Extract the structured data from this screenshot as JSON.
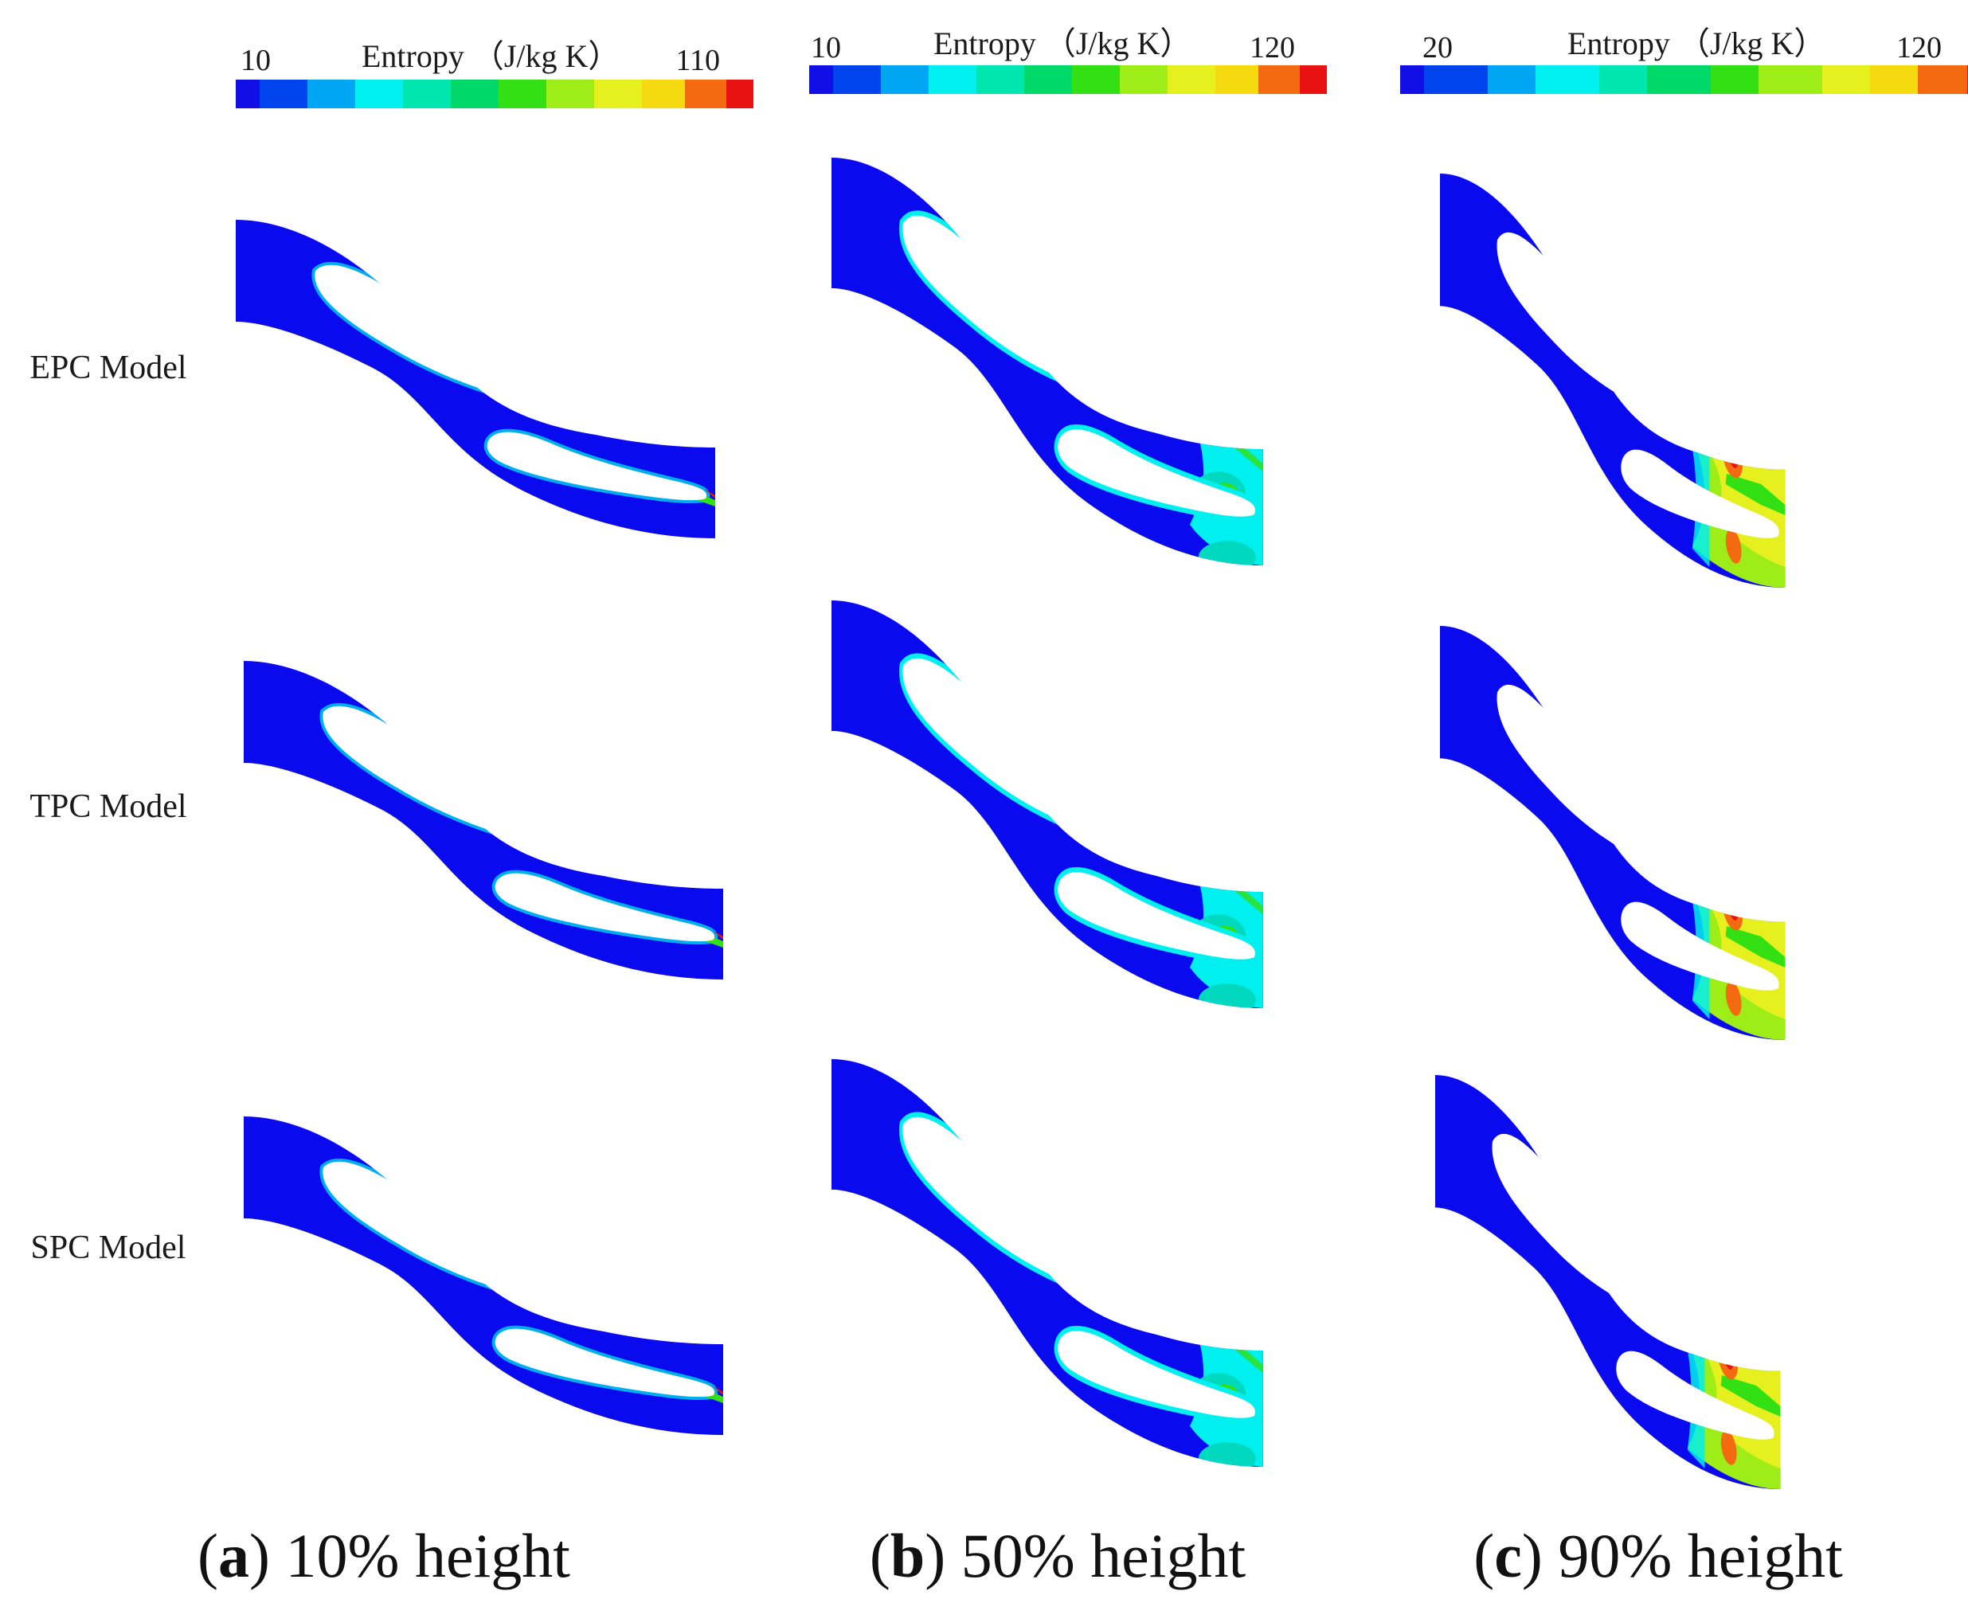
{
  "figure": {
    "row_labels": [
      "EPC Model",
      "TPC Model",
      "SPC  Model"
    ],
    "colorbars": [
      {
        "title": "Entropy （J/kg K）",
        "min_label": "10",
        "max_label": "110"
      },
      {
        "title": "Entropy （J/kg K）",
        "min_label": "10",
        "max_label": "120"
      },
      {
        "title": "Entropy （J/kg K）",
        "min_label": "20",
        "max_label": "120"
      }
    ],
    "captions": [
      {
        "open": "(",
        "letter": "a",
        "rest": ") 10% height"
      },
      {
        "open": "(",
        "letter": "b",
        "rest": ") 50% height"
      },
      {
        "open": "(",
        "letter": "c",
        "rest": ") 90% height"
      }
    ]
  },
  "colors": {
    "background": "#ffffff",
    "passage_low": "#0a0aee",
    "colormap": [
      "#1010e6",
      "#0044ee",
      "#00a6f2",
      "#00f0f0",
      "#00e6b0",
      "#00d86a",
      "#33e014",
      "#9eec18",
      "#e6f01e",
      "#f5da12",
      "#f46a10",
      "#e81212"
    ]
  }
}
